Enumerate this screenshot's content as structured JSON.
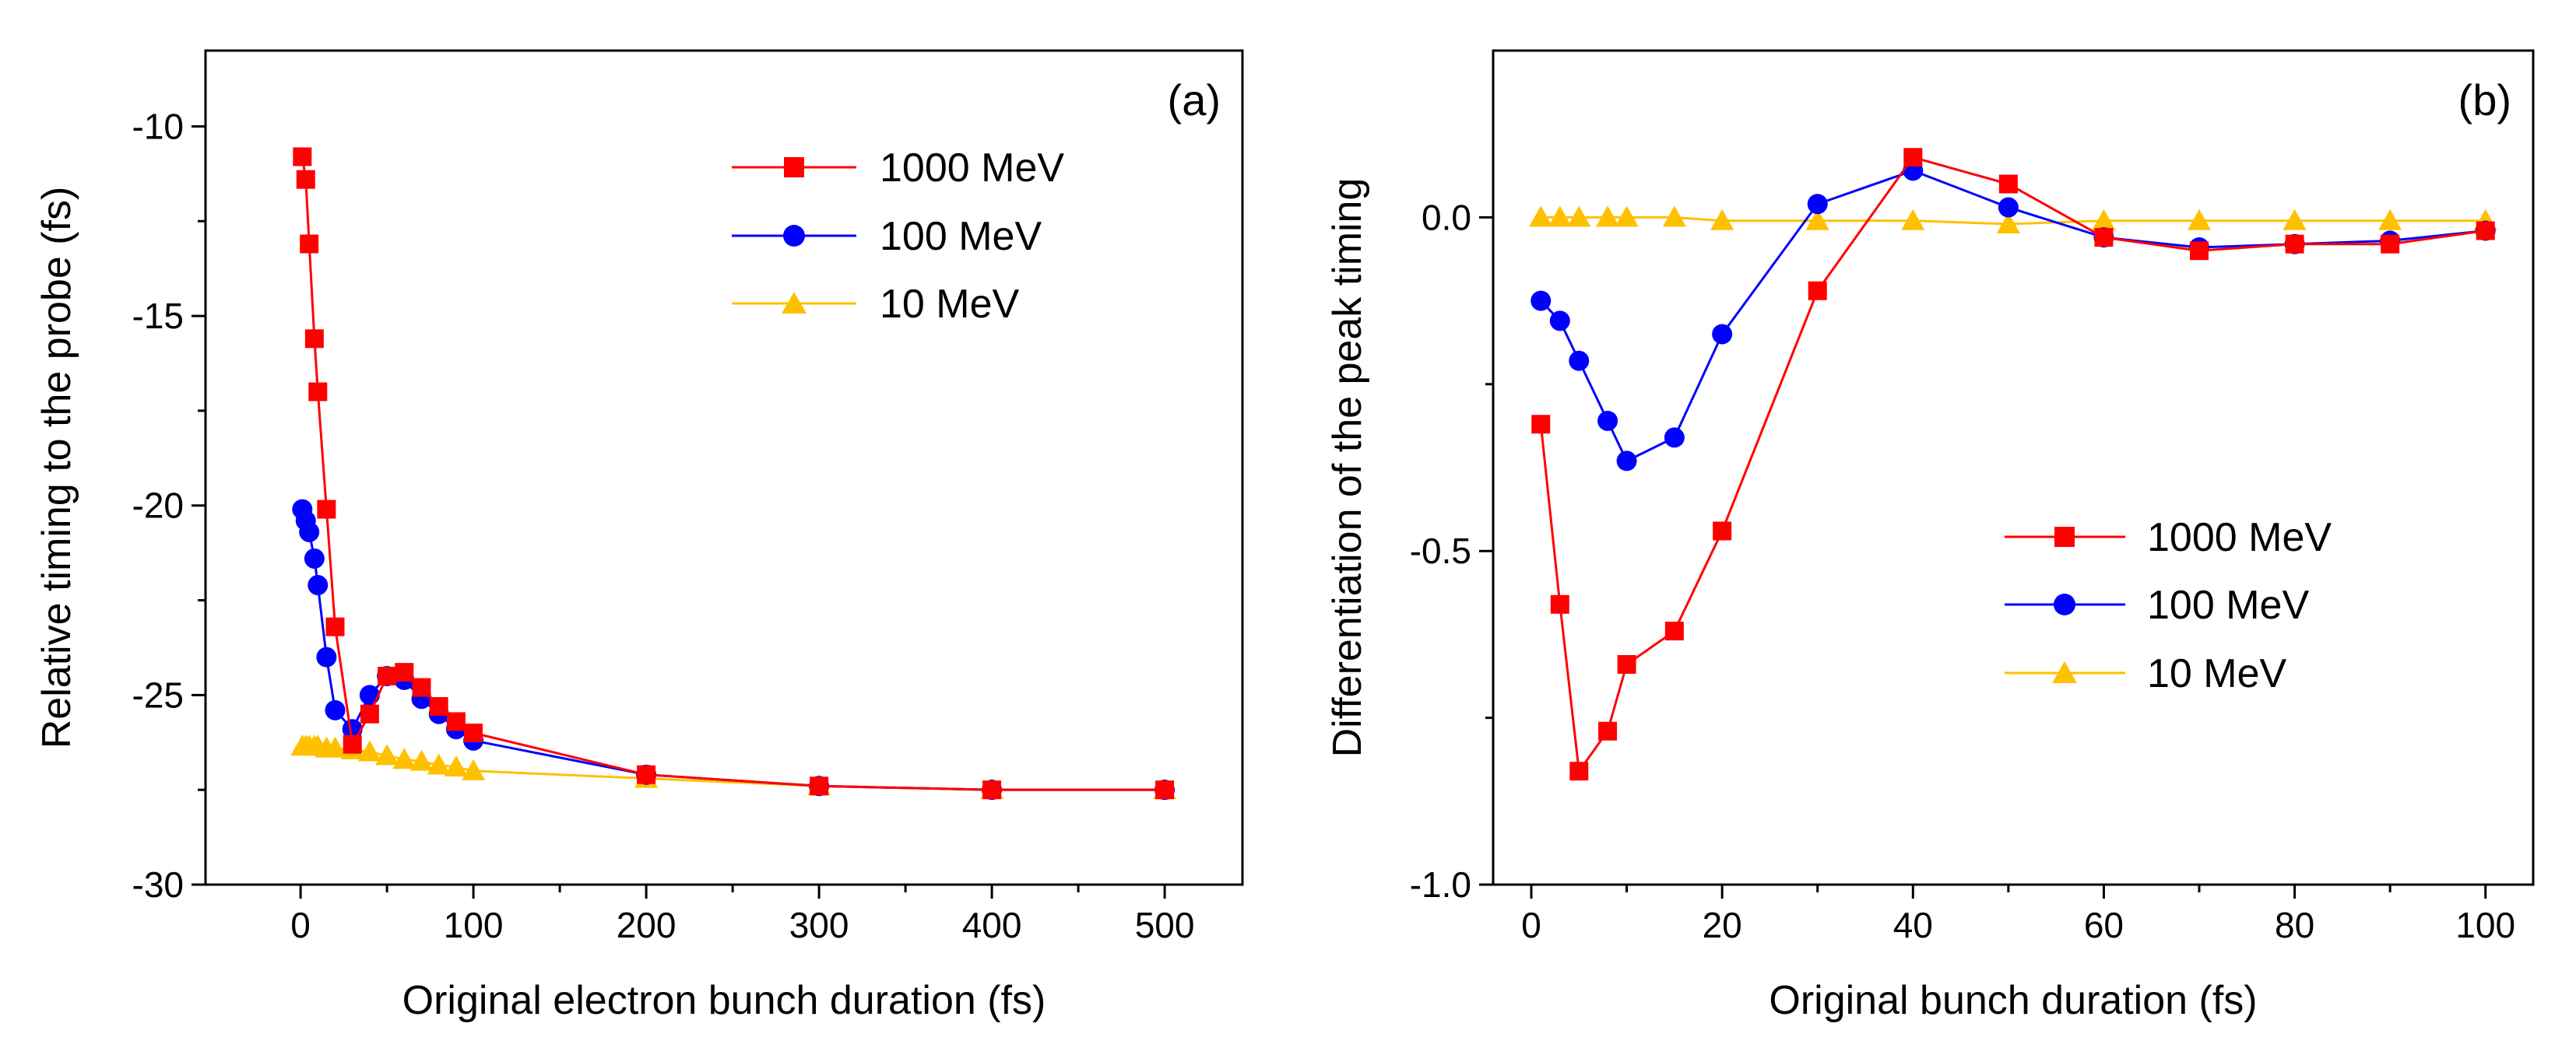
{
  "chart_data": [
    {
      "type": "line",
      "panel_label": "(a)",
      "title": "",
      "xlabel": "Original electron bunch duration (fs)",
      "ylabel": "Relative timing to the probe (fs)",
      "xlim": [
        -55,
        545
      ],
      "ylim": [
        -30,
        -8
      ],
      "xticks": [
        0,
        100,
        200,
        300,
        400,
        500
      ],
      "yticks": [
        -30,
        -25,
        -20,
        -15,
        -10
      ],
      "xtick_labels": [
        "0",
        "100",
        "200",
        "300",
        "400",
        "500"
      ],
      "ytick_labels": [
        "-30",
        "-25",
        "-20",
        "-15",
        "-10"
      ],
      "grid": false,
      "legend_position": "top-right",
      "series": [
        {
          "name": "1000 MeV",
          "color": "#ff0000",
          "marker": "square",
          "x": [
            1,
            3,
            5,
            8,
            10,
            15,
            20,
            30,
            40,
            50,
            60,
            70,
            80,
            90,
            100,
            200,
            300,
            400,
            500
          ],
          "y": [
            -10.8,
            -11.4,
            -13.1,
            -15.6,
            -17.0,
            -20.1,
            -23.2,
            -26.3,
            -25.5,
            -24.5,
            -24.4,
            -24.8,
            -25.3,
            -25.7,
            -26.0,
            -27.1,
            -27.4,
            -27.5,
            -27.5
          ]
        },
        {
          "name": "100 MeV",
          "color": "#0000ff",
          "marker": "circle",
          "x": [
            1,
            3,
            5,
            8,
            10,
            15,
            20,
            30,
            40,
            50,
            60,
            70,
            80,
            90,
            100,
            200,
            300,
            400,
            500
          ],
          "y": [
            -20.1,
            -20.4,
            -20.7,
            -21.4,
            -22.1,
            -24.0,
            -25.4,
            -25.9,
            -25.0,
            -24.5,
            -24.6,
            -25.1,
            -25.5,
            -25.9,
            -26.2,
            -27.1,
            -27.4,
            -27.5,
            -27.5
          ]
        },
        {
          "name": "10 MeV",
          "color": "#ffc000",
          "marker": "triangle",
          "x": [
            1,
            3,
            5,
            8,
            10,
            15,
            20,
            30,
            40,
            50,
            60,
            70,
            80,
            90,
            100,
            200,
            300,
            400,
            500
          ],
          "y": [
            -26.35,
            -26.35,
            -26.35,
            -26.35,
            -26.35,
            -26.4,
            -26.4,
            -26.45,
            -26.5,
            -26.6,
            -26.7,
            -26.75,
            -26.85,
            -26.9,
            -27.0,
            -27.2,
            -27.4,
            -27.5,
            -27.5
          ]
        }
      ]
    },
    {
      "type": "line",
      "panel_label": "(b)",
      "title": "",
      "xlabel": "Original bunch duration (fs)",
      "ylabel": "Differentiation of the peak timing",
      "xlim": [
        -4,
        105
      ],
      "ylim": [
        -1.0,
        0.25
      ],
      "xticks": [
        0,
        20,
        40,
        60,
        80,
        100
      ],
      "yticks": [
        -1.0,
        -0.5,
        0.0
      ],
      "xtick_labels": [
        "0",
        "20",
        "40",
        "60",
        "80",
        "100"
      ],
      "ytick_labels": [
        "-1.0",
        "-0.5",
        "0.0"
      ],
      "grid": false,
      "legend_position": "center-right",
      "series": [
        {
          "name": "1000 MeV",
          "color": "#ff0000",
          "marker": "square",
          "x": [
            1,
            3,
            5,
            8,
            10,
            15,
            20,
            30,
            40,
            50,
            60,
            70,
            80,
            90,
            100
          ],
          "y": [
            -0.31,
            -0.58,
            -0.83,
            -0.77,
            -0.67,
            -0.62,
            -0.47,
            -0.11,
            0.09,
            0.05,
            -0.03,
            -0.05,
            -0.04,
            -0.04,
            -0.02
          ]
        },
        {
          "name": "100 MeV",
          "color": "#0000ff",
          "marker": "circle",
          "x": [
            1,
            3,
            5,
            8,
            10,
            15,
            20,
            30,
            40,
            50,
            60,
            70,
            80,
            90,
            100
          ],
          "y": [
            -0.125,
            -0.155,
            -0.215,
            -0.305,
            -0.365,
            -0.33,
            -0.175,
            0.02,
            0.07,
            0.015,
            -0.03,
            -0.045,
            -0.04,
            -0.035,
            -0.02
          ]
        },
        {
          "name": "10 MeV",
          "color": "#ffc000",
          "marker": "triangle",
          "x": [
            1,
            3,
            5,
            8,
            10,
            15,
            20,
            30,
            40,
            50,
            60,
            70,
            80,
            90,
            100
          ],
          "y": [
            0.0,
            0.0,
            0.0,
            0.0,
            0.0,
            0.0,
            -0.005,
            -0.005,
            -0.005,
            -0.01,
            -0.005,
            -0.005,
            -0.005,
            -0.005,
            -0.005
          ]
        }
      ]
    }
  ]
}
